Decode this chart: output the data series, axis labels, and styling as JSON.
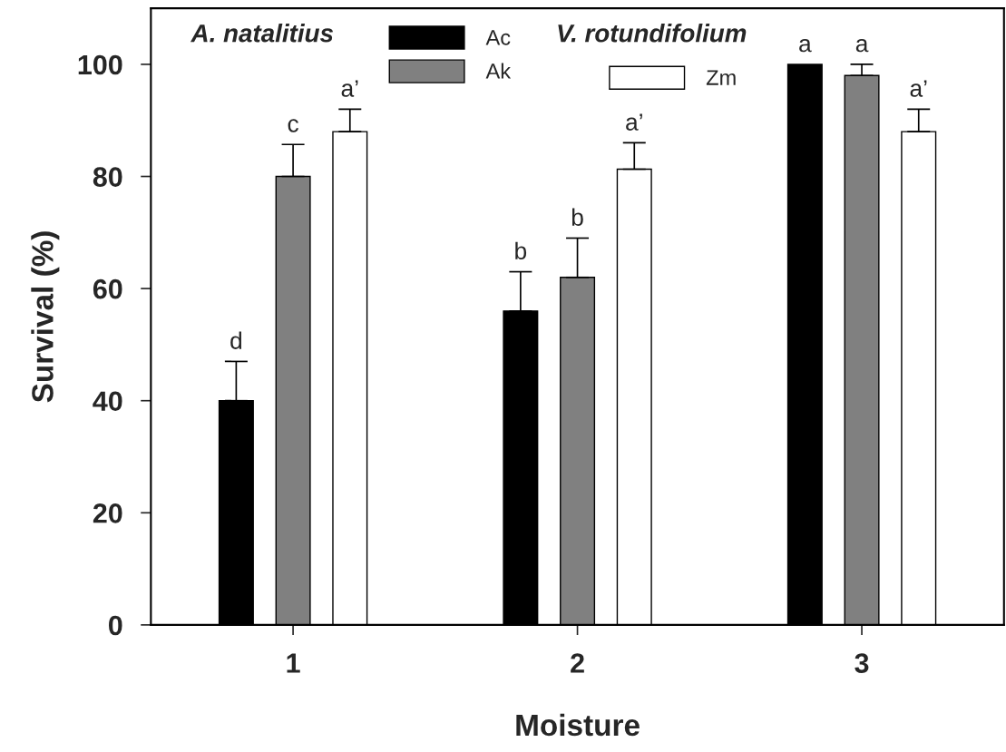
{
  "chart_data": {
    "type": "bar",
    "categories": [
      "1",
      "2",
      "3"
    ],
    "xlabel": "Moisture",
    "ylabel": "Survival (%)",
    "ylim": [
      0,
      110
    ],
    "yticks": [
      0,
      20,
      40,
      60,
      80,
      100
    ],
    "series": [
      {
        "name": "Ac",
        "color": "#000000",
        "values": [
          40,
          56,
          100
        ],
        "errors": [
          [
            40,
            47
          ],
          [
            56,
            63
          ],
          null
        ],
        "value_labels": [
          "d",
          "b",
          "a"
        ]
      },
      {
        "name": "Ak",
        "color": "#808080",
        "values": [
          80,
          62,
          98
        ],
        "errors": [
          [
            80,
            85.7
          ],
          [
            62,
            69
          ],
          [
            98,
            100
          ]
        ],
        "value_labels": [
          "c",
          "b",
          "a"
        ]
      },
      {
        "name": "Zm",
        "color": "#ffffff",
        "values": [
          88,
          81.3,
          88
        ],
        "errors": [
          [
            88,
            92
          ],
          [
            81.3,
            86
          ],
          [
            88,
            92
          ]
        ],
        "value_labels": [
          "a’",
          "a’",
          "a’"
        ]
      }
    ],
    "annotations": [
      "A. natalitius",
      "V. rotundifolium"
    ],
    "legend": "top",
    "grid": false
  }
}
